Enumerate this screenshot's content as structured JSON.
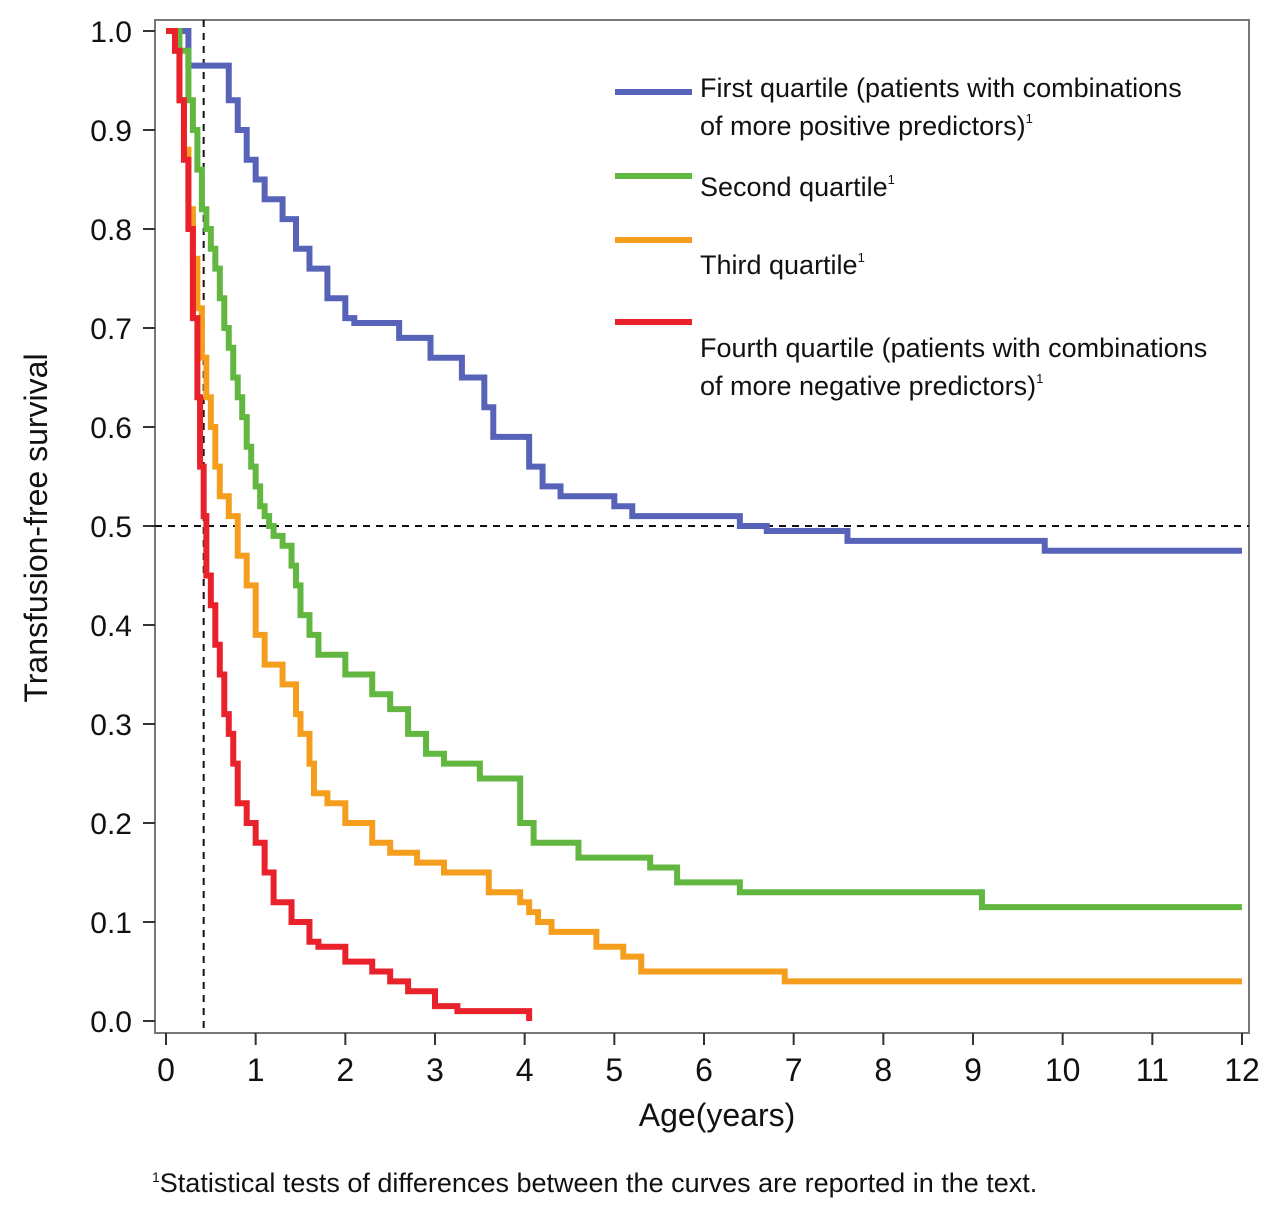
{
  "chart_data": {
    "type": "line",
    "step": true,
    "xlabel": "Age(years)",
    "ylabel": "Transfusion-free survival",
    "xlim": [
      0,
      12
    ],
    "ylim": [
      0,
      1
    ],
    "xticks": [
      "0",
      "1",
      "2",
      "3",
      "4",
      "5",
      "6",
      "7",
      "8",
      "9",
      "10",
      "11",
      "12"
    ],
    "yticks": [
      "0.0",
      "0.1",
      "0.2",
      "0.3",
      "0.4",
      "0.5",
      "0.6",
      "0.7",
      "0.8",
      "0.9",
      "1.0"
    ],
    "reference_lines": {
      "horizontal_y": 0.5,
      "vertical_x": 0.42
    },
    "legend_position": "top-right",
    "series": [
      {
        "name": "First quartile (patients with combinations of more positive predictors)",
        "legend_lines": [
          "First quartile (patients with combinations",
          "of more positive predictors)"
        ],
        "color": "#5663b8",
        "x": [
          0,
          0.25,
          0.35,
          0.7,
          0.8,
          0.9,
          1.0,
          1.1,
          1.3,
          1.45,
          1.6,
          1.8,
          2.0,
          2.1,
          2.6,
          2.95,
          3.3,
          3.55,
          3.65,
          3.8,
          4.05,
          4.2,
          4.4,
          5.0,
          5.2,
          5.7,
          6.4,
          6.7,
          7.6,
          9.8,
          12
        ],
        "y": [
          1.0,
          0.965,
          0.965,
          0.93,
          0.9,
          0.87,
          0.85,
          0.83,
          0.81,
          0.78,
          0.76,
          0.73,
          0.71,
          0.705,
          0.69,
          0.67,
          0.65,
          0.62,
          0.59,
          0.59,
          0.56,
          0.54,
          0.53,
          0.52,
          0.51,
          0.51,
          0.5,
          0.495,
          0.485,
          0.475,
          0.475
        ]
      },
      {
        "name": "Second quartile",
        "legend_lines": [
          "Second quartile"
        ],
        "color": "#62b740",
        "x": [
          0,
          0.15,
          0.25,
          0.3,
          0.35,
          0.4,
          0.45,
          0.5,
          0.55,
          0.6,
          0.65,
          0.7,
          0.75,
          0.8,
          0.85,
          0.9,
          0.95,
          1.0,
          1.05,
          1.1,
          1.15,
          1.2,
          1.3,
          1.4,
          1.45,
          1.5,
          1.6,
          1.7,
          2.0,
          2.3,
          2.5,
          2.7,
          2.9,
          3.1,
          3.5,
          3.95,
          4.1,
          4.6,
          5.4,
          5.7,
          6.4,
          9.1,
          12
        ],
        "y": [
          1.0,
          0.98,
          0.93,
          0.9,
          0.86,
          0.82,
          0.8,
          0.78,
          0.76,
          0.73,
          0.7,
          0.68,
          0.65,
          0.63,
          0.61,
          0.58,
          0.56,
          0.54,
          0.52,
          0.51,
          0.5,
          0.49,
          0.48,
          0.46,
          0.44,
          0.41,
          0.39,
          0.37,
          0.35,
          0.33,
          0.315,
          0.29,
          0.27,
          0.26,
          0.245,
          0.2,
          0.18,
          0.165,
          0.155,
          0.14,
          0.13,
          0.115,
          0.115
        ]
      },
      {
        "name": "Third quartile",
        "legend_lines": [
          "Third quartile"
        ],
        "color": "#f59e1e",
        "x": [
          0,
          0.1,
          0.15,
          0.2,
          0.25,
          0.3,
          0.35,
          0.4,
          0.45,
          0.5,
          0.55,
          0.6,
          0.7,
          0.8,
          0.9,
          1.0,
          1.1,
          1.3,
          1.45,
          1.5,
          1.6,
          1.65,
          1.8,
          2.0,
          2.3,
          2.5,
          2.8,
          3.1,
          3.6,
          3.95,
          4.05,
          4.15,
          4.3,
          4.8,
          5.1,
          5.3,
          6.9,
          12
        ],
        "y": [
          1.0,
          0.98,
          0.93,
          0.88,
          0.82,
          0.77,
          0.72,
          0.67,
          0.63,
          0.6,
          0.56,
          0.53,
          0.51,
          0.47,
          0.44,
          0.39,
          0.36,
          0.34,
          0.31,
          0.29,
          0.26,
          0.23,
          0.22,
          0.2,
          0.18,
          0.17,
          0.16,
          0.15,
          0.13,
          0.12,
          0.11,
          0.1,
          0.09,
          0.075,
          0.065,
          0.05,
          0.04,
          0.04
        ]
      },
      {
        "name": "Fourth quartile (patients with combinations of more negative predictors)",
        "legend_lines": [
          "Fourth quartile (patients with combinations",
          "of more negative predictors)"
        ],
        "color": "#e8212b",
        "x": [
          0,
          0.1,
          0.15,
          0.2,
          0.25,
          0.3,
          0.35,
          0.38,
          0.42,
          0.45,
          0.5,
          0.55,
          0.6,
          0.65,
          0.7,
          0.75,
          0.8,
          0.9,
          1.0,
          1.1,
          1.2,
          1.4,
          1.6,
          1.7,
          2.0,
          2.3,
          2.5,
          2.7,
          3.0,
          3.25,
          4.05
        ],
        "y": [
          1.0,
          0.98,
          0.93,
          0.87,
          0.8,
          0.71,
          0.63,
          0.56,
          0.51,
          0.45,
          0.42,
          0.38,
          0.35,
          0.31,
          0.29,
          0.26,
          0.22,
          0.2,
          0.18,
          0.15,
          0.12,
          0.1,
          0.08,
          0.075,
          0.06,
          0.05,
          0.04,
          0.03,
          0.015,
          0.01,
          0.0
        ]
      }
    ]
  },
  "footnote": {
    "marker": "1",
    "text": "Statistical tests of differences between the curves are reported in the text."
  }
}
